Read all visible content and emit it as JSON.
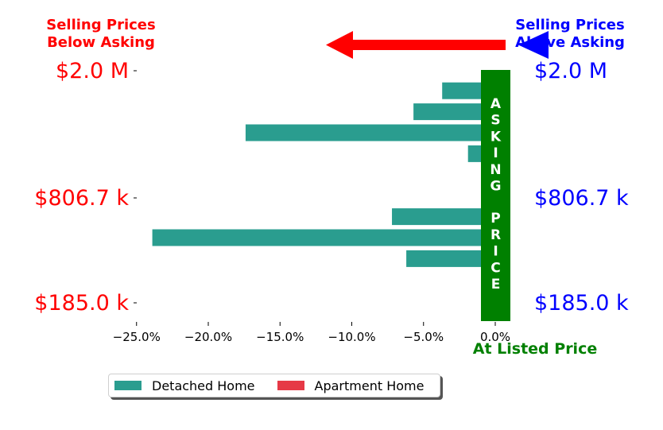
{
  "header_left": {
    "line1": "Selling Prices",
    "line2": "Below Asking",
    "color": "#ff0000"
  },
  "header_right": {
    "line1": "Selling Prices",
    "line2": "Above Asking",
    "color": "#0000ff"
  },
  "colors": {
    "detached": "#2a9d8f",
    "apartment": "#e63946",
    "asking_band": "#008000",
    "left_labels": "#ff0000",
    "right_labels": "#0000ff",
    "arrow_left": "#ff0000",
    "arrow_right": "#0000ff"
  },
  "chart_data": {
    "type": "bar",
    "orientation": "horizontal",
    "xlim": [
      -0.265,
      0.01
    ],
    "x_ticks": [
      -0.25,
      -0.2,
      -0.15,
      -0.1,
      -0.05,
      0.0
    ],
    "x_tick_labels": [
      "−25.0%",
      "−20.0%",
      "−15.0%",
      "−10.0%",
      "−5.0%",
      "0.0%"
    ],
    "x_annotation": "At Listed Price",
    "y_tick_labels": [
      "$2.0 M",
      "$806.7 k",
      "$185.0 k"
    ],
    "asking_band_text": "ASKING PRICE",
    "series": [
      {
        "name": "Detached Home",
        "color": "#2a9d8f"
      },
      {
        "name": "Apartment Home",
        "color": "#e63946"
      }
    ],
    "bars": [
      {
        "series": "Detached Home",
        "value": -0.037
      },
      {
        "series": "Detached Home",
        "value": -0.057
      },
      {
        "series": "Detached Home",
        "value": -0.174
      },
      {
        "series": "Detached Home",
        "value": -0.019
      },
      {
        "series": "Apartment Home",
        "value": 0.004
      },
      {
        "series": "Detached Home",
        "value": 0.003
      },
      {
        "series": "Detached Home",
        "value": -0.072
      },
      {
        "series": "Detached Home",
        "value": -0.239
      },
      {
        "series": "Detached Home",
        "value": -0.062
      },
      {
        "series": "Detached Home",
        "value": 0.003
      },
      {
        "series": "Detached Home",
        "value": 0.003
      }
    ],
    "legend_position": "lower-center"
  }
}
